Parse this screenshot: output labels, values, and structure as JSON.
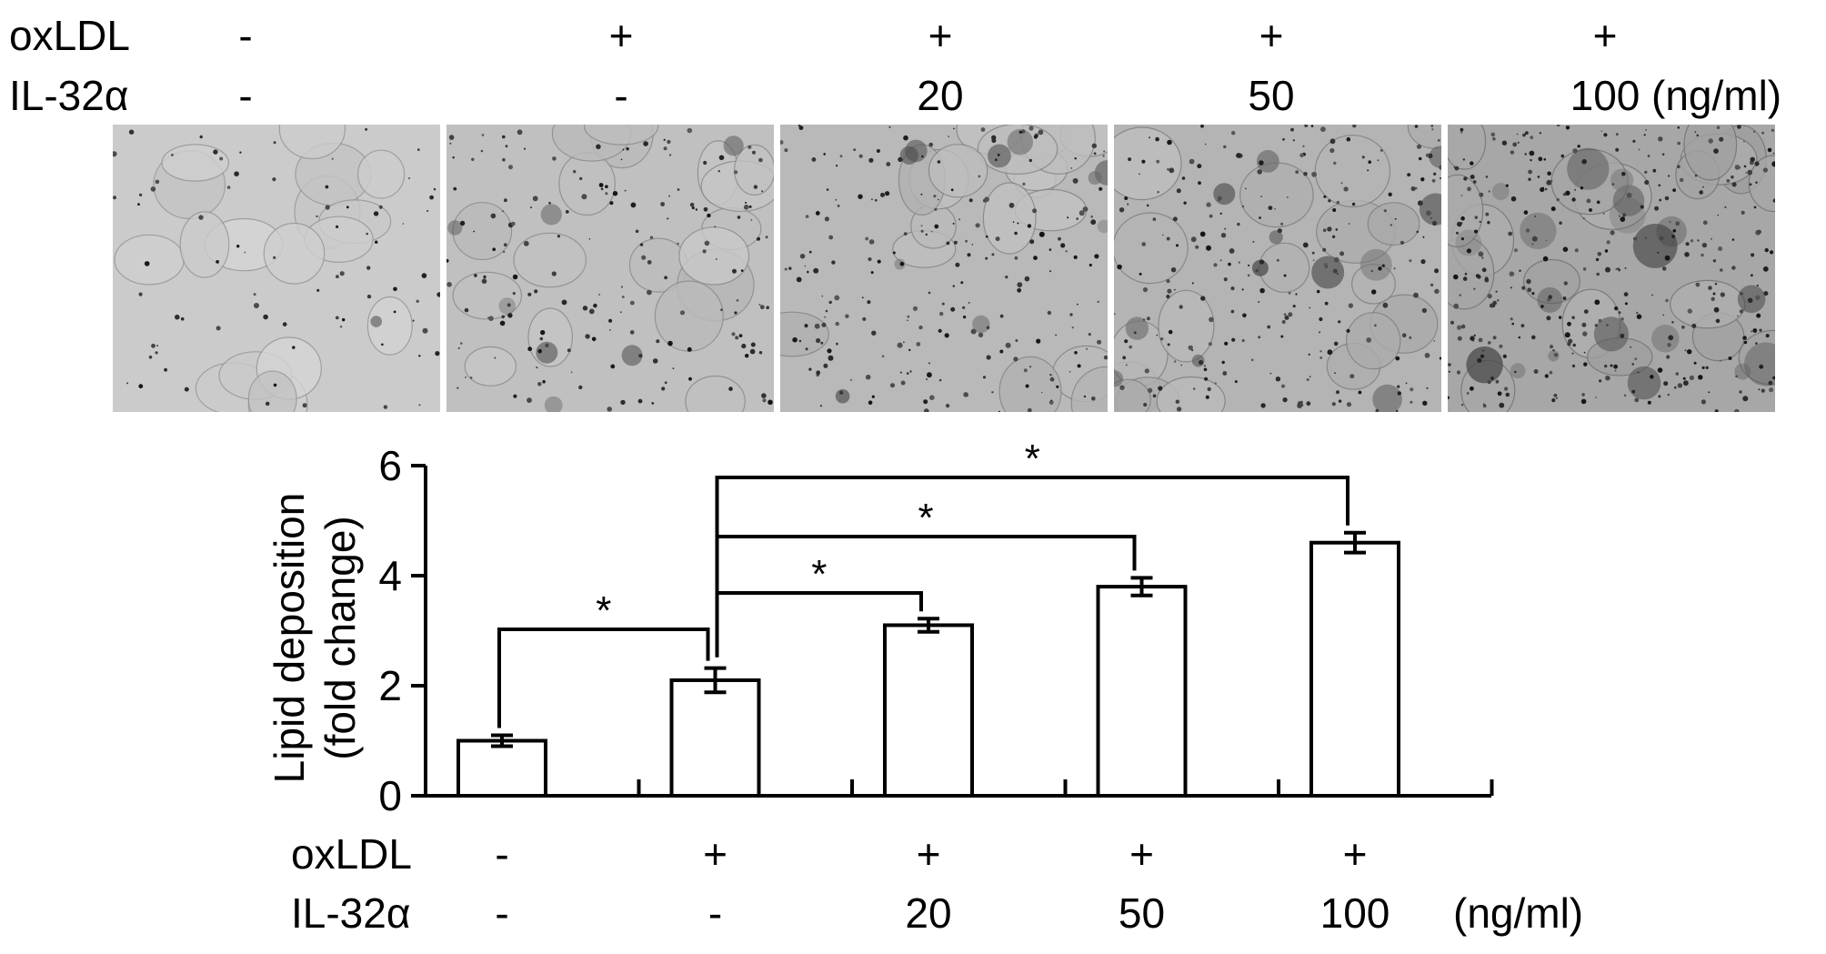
{
  "top_conditions": {
    "rows": [
      {
        "label": "oxLDL",
        "values": [
          "-",
          "+",
          "+",
          "+",
          "+"
        ]
      },
      {
        "label": "IL-32α",
        "values": [
          "-",
          "-",
          "20",
          "50",
          "100"
        ],
        "unit": "(ng/ml)"
      }
    ]
  },
  "micrographs": [
    {
      "name": "control",
      "darkness": 0.05
    },
    {
      "name": "oxldl",
      "darkness": 0.3
    },
    {
      "name": "oxldl-il32-20",
      "darkness": 0.45
    },
    {
      "name": "oxldl-il32-50",
      "darkness": 0.55
    },
    {
      "name": "oxldl-il32-100",
      "darkness": 0.85
    }
  ],
  "chart_data": {
    "type": "bar",
    "ylabel_lines": [
      "Lipid deposition",
      "(fold change)"
    ],
    "ylim": [
      0,
      6
    ],
    "yticks": [
      0,
      2,
      4,
      6
    ],
    "categories": [
      "- / -",
      "+ / -",
      "+ / 20",
      "+ / 50",
      "+ / 100"
    ],
    "values": [
      1.0,
      2.1,
      3.1,
      3.8,
      4.6
    ],
    "errors": [
      0.1,
      0.22,
      0.12,
      0.16,
      0.18
    ],
    "bar_color": "#ffffff",
    "significance": [
      {
        "from": 0,
        "to": 1,
        "label": "*"
      },
      {
        "from": 1,
        "to": 2,
        "label": "*"
      },
      {
        "from": 1,
        "to": 3,
        "label": "*"
      },
      {
        "from": 1,
        "to": 4,
        "label": "*"
      }
    ],
    "x_conditions": [
      {
        "label": "oxLDL",
        "values": [
          "-",
          "+",
          "+",
          "+",
          "+"
        ]
      },
      {
        "label": "IL-32α",
        "values": [
          "-",
          "-",
          "20",
          "50",
          "100"
        ],
        "unit": "(ng/ml)"
      }
    ]
  }
}
